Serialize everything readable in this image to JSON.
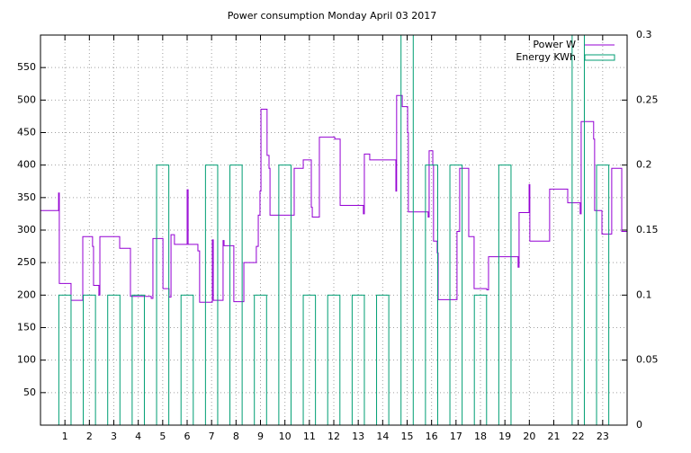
{
  "chart_data": {
    "type": "combo",
    "title": "Power consumption Monday April 03 2017",
    "xlim": [
      0,
      24
    ],
    "xticks": [
      1,
      2,
      3,
      4,
      5,
      6,
      7,
      8,
      9,
      10,
      11,
      12,
      13,
      14,
      15,
      16,
      17,
      18,
      19,
      20,
      21,
      22,
      23
    ],
    "ylim": [
      0,
      600
    ],
    "yticks": [
      50,
      100,
      150,
      200,
      250,
      300,
      350,
      400,
      450,
      500,
      550
    ],
    "y2lim": [
      0,
      0.3
    ],
    "y2ticks": [
      0,
      0.05,
      0.1,
      0.15,
      0.2,
      0.25,
      0.3
    ],
    "grid": true,
    "legend": "top-right",
    "series": [
      {
        "name": "Power W",
        "type": "step",
        "color": "#9400d3",
        "x": [
          0,
          0.74,
          0.77,
          1.25,
          1.73,
          2.13,
          2.17,
          2.39,
          2.43,
          3.24,
          3.68,
          4.53,
          4.6,
          5.01,
          5.26,
          5.34,
          5.48,
          6.0,
          6.04,
          6.44,
          6.51,
          7.03,
          7.07,
          7.47,
          7.51,
          7.91,
          8.32,
          8.83,
          8.91,
          8.98,
          9.02,
          9.27,
          9.35,
          9.39,
          10.38,
          10.75,
          11.08,
          11.12,
          11.41,
          12.04,
          12.26,
          13.21,
          13.25,
          13.47,
          14.54,
          14.57,
          14.8,
          15.02,
          15.05,
          15.86,
          15.9,
          16.05,
          16.08,
          16.23,
          16.27,
          17.04,
          17.15,
          17.52,
          17.74,
          18.26,
          18.33,
          19.54,
          19.58,
          19.99,
          20.02,
          20.83,
          21.57,
          22.08,
          22.12,
          22.63,
          22.67,
          22.97,
          23.37,
          23.78,
          24
        ],
        "values": [
          330,
          357,
          218,
          192,
          290,
          275,
          215,
          200,
          290,
          272,
          198,
          195,
          287,
          210,
          197,
          293,
          278,
          362,
          278,
          268,
          189,
          285,
          192,
          284,
          276,
          190,
          250,
          275,
          323,
          360,
          486,
          415,
          395,
          323,
          395,
          408,
          335,
          320,
          443,
          440,
          338,
          325,
          417,
          408,
          360,
          507,
          490,
          450,
          328,
          320,
          422,
          400,
          283,
          265,
          193,
          298,
          395,
          290,
          210,
          208,
          259,
          243,
          327,
          370,
          283,
          363,
          342,
          325,
          467,
          440,
          330,
          294,
          395,
          298,
          298
        ]
      },
      {
        "name": "Energy KWh",
        "type": "bar",
        "color": "#009e73",
        "axis": "y2",
        "x": [
          1,
          2,
          3,
          4,
          5,
          6,
          7,
          8,
          9,
          10,
          11,
          12,
          13,
          14,
          15,
          16,
          17,
          18,
          19,
          20,
          21,
          22,
          23
        ],
        "values": [
          0.1,
          0.1,
          0.1,
          0.1,
          0.2,
          0.1,
          0.2,
          0.2,
          0.1,
          0.2,
          0.1,
          0.1,
          0.1,
          0.1,
          0.3,
          0.2,
          0.2,
          0.1,
          0.2,
          0,
          0,
          0.3,
          0.2
        ]
      }
    ]
  }
}
